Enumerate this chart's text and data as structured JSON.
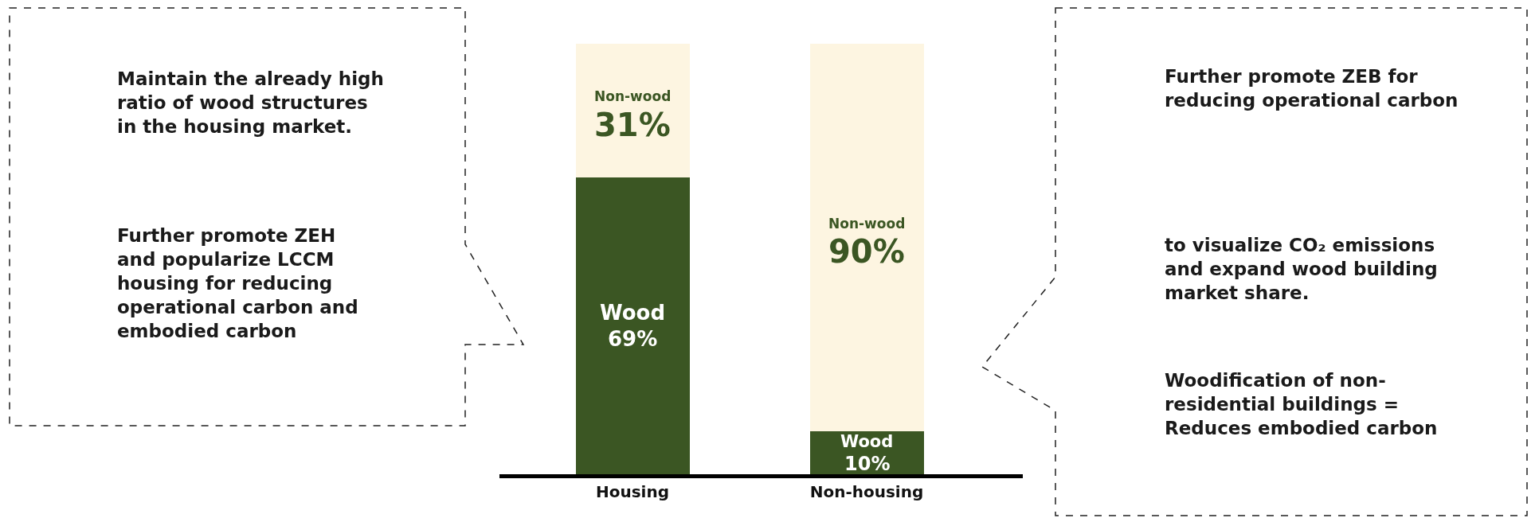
{
  "chart_data": {
    "type": "bar",
    "stacked": true,
    "categories": [
      "Housing",
      "Non-housing"
    ],
    "series": [
      {
        "name": "Wood",
        "color": "#3b5623",
        "values": [
          69,
          10
        ],
        "value_labels": [
          "69%",
          "10%"
        ]
      },
      {
        "name": "Non-wood",
        "color": "#fdf5e1",
        "values": [
          31,
          90
        ],
        "value_labels": [
          "31%",
          "90%"
        ]
      }
    ],
    "tick_labels": "x",
    "annotations": [
      "Maintain the already high\nratio of wood structures\nin the housing market.",
      "Further promote ZEH\nand popularize LCCM\nhousing for reducing\noperational carbon and\nembodied carbon",
      "Further promote ZEB for\nreducing operational carbon",
      "to visualize CO₂ emissions\nand expand wood building\nmarket share.",
      "Woodification of non-\nresidential buildings =\nReduces embodied carbon"
    ]
  }
}
